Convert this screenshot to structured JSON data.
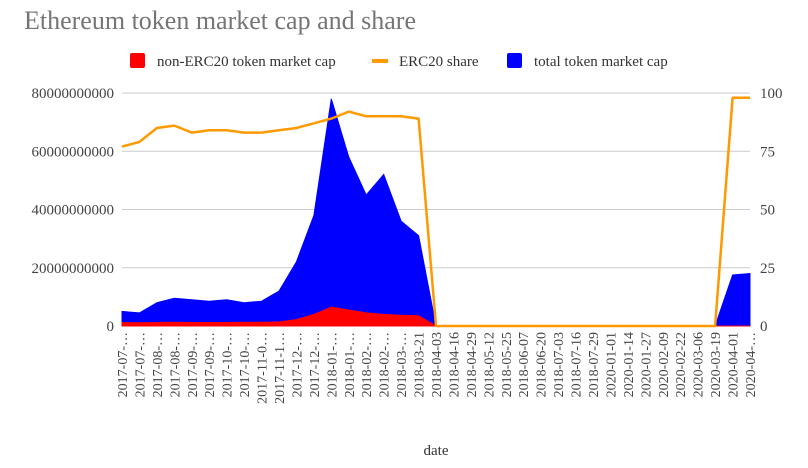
{
  "chart_data": {
    "type": "area",
    "title": "Ethereum token market cap and share",
    "xlabel": "date",
    "ylabel": "",
    "y2label": "",
    "ylim": [
      0,
      80000000000
    ],
    "y2lim": [
      0,
      100
    ],
    "yticks": [
      "0",
      "20000000000",
      "40000000000",
      "60000000000",
      "80000000000"
    ],
    "y2ticks": [
      "0",
      "25",
      "50",
      "75",
      "100"
    ],
    "grid": true,
    "legend_position": "top",
    "categories": [
      "2017-07-…",
      "2017-07-…",
      "2017-08-…",
      "2017-08-…",
      "2017-09-…",
      "2017-09-…",
      "2017-10-…",
      "2017-10-…",
      "2017-11-0…",
      "2017-11-1…",
      "2017-12-…",
      "2017-12-…",
      "2018-01-…",
      "2018-01-…",
      "2018-02-…",
      "2018-02-…",
      "2018-03-…",
      "2018-03-21",
      "2018-04-03",
      "2018-04-16",
      "2018-04-29",
      "2018-05-12",
      "2018-05-25",
      "2018-06-07",
      "2018-06-20",
      "2018-07-03",
      "2018-07-16",
      "2018-07-29",
      "2020-01-01",
      "2020-01-14",
      "2020-01-27",
      "2020-02-09",
      "2020-02-22",
      "2020-03-06",
      "2020-03-19",
      "2020-04-01",
      "2020-04-…"
    ],
    "series": [
      {
        "name": "non-ERC20 token market cap",
        "color": "#ff0000",
        "axis": "left",
        "type": "area",
        "values": [
          1200000000,
          1100000000,
          1200000000,
          1300000000,
          1200000000,
          1200000000,
          1200000000,
          1300000000,
          1300000000,
          1400000000,
          2200000000,
          4000000000,
          6500000000,
          5500000000,
          4500000000,
          4000000000,
          3700000000,
          3500000000,
          0,
          0,
          0,
          0,
          0,
          0,
          0,
          0,
          0,
          0,
          0,
          0,
          0,
          0,
          0,
          0,
          0,
          0,
          0
        ]
      },
      {
        "name": "ERC20 share",
        "color": "#ff9900",
        "axis": "right",
        "type": "line",
        "values": [
          77,
          79,
          85,
          86,
          83,
          84,
          84,
          83,
          83,
          84,
          85,
          87,
          89,
          92,
          90,
          90,
          90,
          89,
          0,
          0,
          0,
          0,
          0,
          0,
          0,
          0,
          0,
          0,
          0,
          0,
          0,
          0,
          0,
          0,
          0,
          98,
          98
        ]
      },
      {
        "name": "total token market cap",
        "color": "#0000ff",
        "axis": "left",
        "type": "area",
        "values": [
          5000000000,
          4500000000,
          8000000000,
          9500000000,
          9000000000,
          8500000000,
          9000000000,
          8000000000,
          8500000000,
          12000000000,
          22000000000,
          38000000000,
          78000000000,
          58000000000,
          45000000000,
          52000000000,
          36000000000,
          31000000000,
          0,
          0,
          0,
          0,
          0,
          0,
          0,
          0,
          0,
          0,
          0,
          0,
          0,
          0,
          0,
          0,
          0,
          17500000000,
          18000000000
        ]
      }
    ]
  }
}
